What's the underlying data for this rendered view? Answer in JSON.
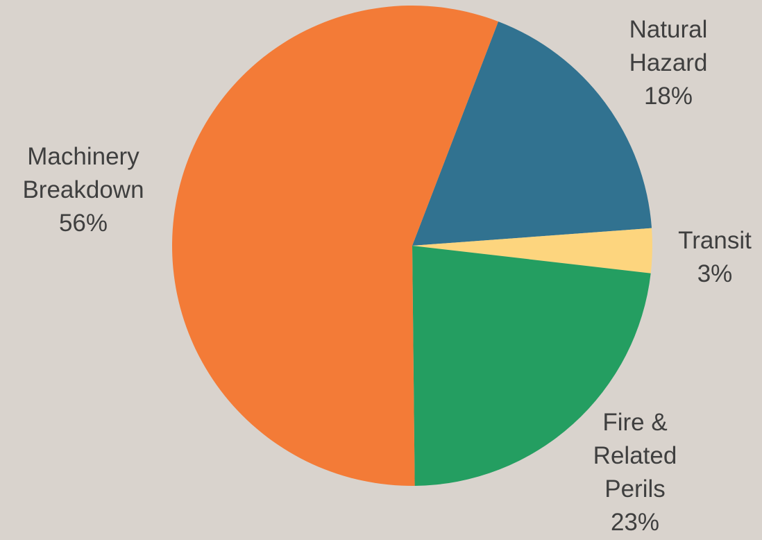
{
  "chart_data": {
    "type": "pie",
    "title": "",
    "slices": [
      {
        "lines": [
          "Natural",
          "Hazard"
        ],
        "value": 18,
        "label": "18%",
        "color": "#317290"
      },
      {
        "lines": [
          "Transit"
        ],
        "value": 3,
        "label": "3%",
        "color": "#fdd57e"
      },
      {
        "lines": [
          "Fire &",
          "Related",
          "Perils"
        ],
        "value": 23,
        "label": "23%",
        "color": "#249e61"
      },
      {
        "lines": [
          "Machinery",
          "Breakdown"
        ],
        "value": 56,
        "label": "56%",
        "color": "#f37b37"
      }
    ]
  }
}
